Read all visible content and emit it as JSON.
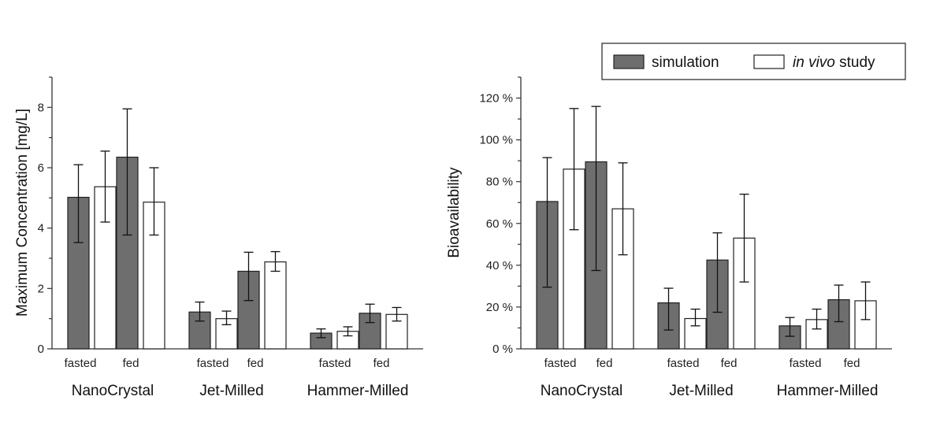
{
  "legend": {
    "simulation": "simulation",
    "invivo_italic": "in vivo",
    "invivo_rest": " study",
    "colors": {
      "simulation": "#6e6e6e",
      "invivo": "#ffffff"
    }
  },
  "chart_data": [
    {
      "type": "bar",
      "ylabel": "Maximum Concentration [mg/L]",
      "ylim": [
        0,
        9
      ],
      "yticks": [
        0,
        2,
        4,
        6,
        8
      ],
      "ytick_labels": [
        "0",
        "2",
        "4",
        "6",
        "8"
      ],
      "groups": [
        "NanoCrystal",
        "Jet-Milled",
        "Hammer-Milled"
      ],
      "conditions": [
        "fasted",
        "fed"
      ],
      "series": [
        {
          "name": "simulation",
          "values": [
            5.02,
            6.35,
            1.22,
            2.57,
            0.52,
            1.18
          ],
          "err_low": [
            3.52,
            3.77,
            0.92,
            1.6,
            0.37,
            0.87
          ],
          "err_high": [
            6.1,
            7.95,
            1.55,
            3.2,
            0.66,
            1.48
          ]
        },
        {
          "name": "in vivo study",
          "values": [
            5.37,
            4.86,
            1.0,
            2.88,
            0.58,
            1.14
          ],
          "err_low": [
            4.2,
            3.77,
            0.8,
            2.57,
            0.43,
            0.92
          ],
          "err_high": [
            6.55,
            6.0,
            1.25,
            3.22,
            0.73,
            1.37
          ]
        }
      ]
    },
    {
      "type": "bar",
      "ylabel": "Bioavailability",
      "ylim": [
        0,
        130
      ],
      "yticks": [
        0,
        20,
        40,
        60,
        80,
        100,
        120
      ],
      "ytick_labels": [
        "0 %",
        "20 %",
        "40 %",
        "60 %",
        "80 %",
        "100 %",
        "120 %"
      ],
      "groups": [
        "NanoCrystal",
        "Jet-Milled",
        "Hammer-Milled"
      ],
      "conditions": [
        "fasted",
        "fed"
      ],
      "series": [
        {
          "name": "simulation",
          "values": [
            70.5,
            89.5,
            22,
            42.5,
            11,
            23.5
          ],
          "err_low": [
            29.5,
            37.5,
            9,
            17.5,
            6,
            13
          ],
          "err_high": [
            91.5,
            116,
            29,
            55.5,
            15,
            30.5
          ]
        },
        {
          "name": "in vivo study",
          "values": [
            86,
            67,
            14.5,
            53,
            14,
            23
          ],
          "err_low": [
            57,
            45,
            11,
            32,
            9.5,
            14
          ],
          "err_high": [
            115,
            89,
            19,
            74,
            19,
            32
          ]
        }
      ]
    }
  ]
}
